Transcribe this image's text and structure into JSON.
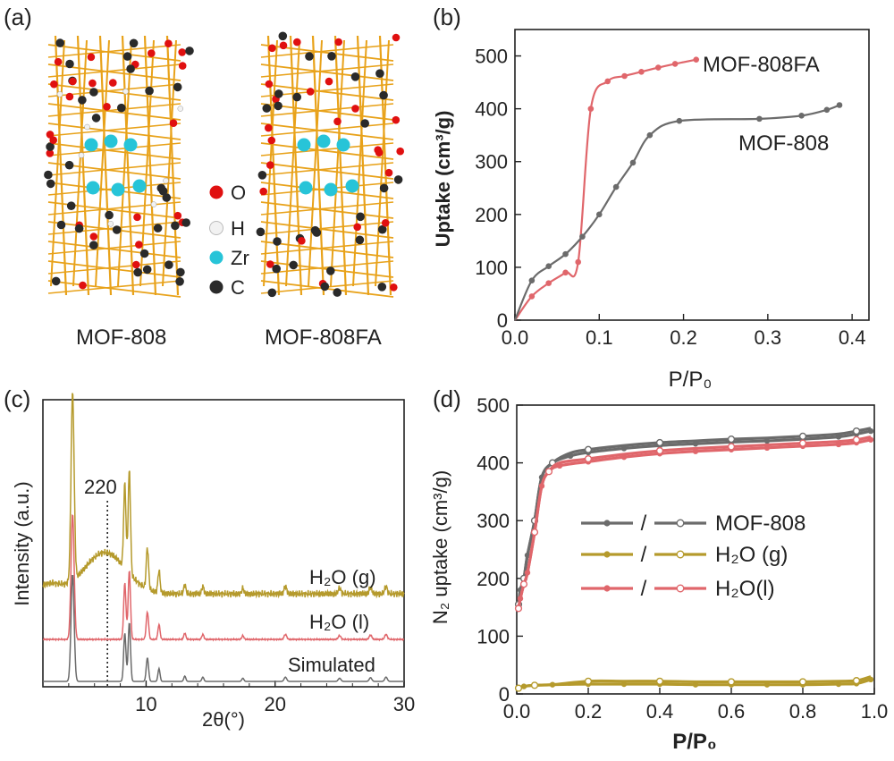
{
  "colors": {
    "gray": "#6b6b6b",
    "red": "#e0666b",
    "gold": "#b59a2c",
    "axis": "#222222",
    "zr": "#27c4d8",
    "o": "#e01010",
    "c": "#2a2a2a",
    "h": "#f2f2f2",
    "bond": "#e8a21a"
  },
  "panels": {
    "a": {
      "label": "(a)",
      "structure_left": "MOF-808",
      "structure_right": "MOF-808FA",
      "legend": [
        {
          "symbol": "O",
          "color": "#e01010"
        },
        {
          "symbol": "H",
          "color": "#f2f2f2"
        },
        {
          "symbol": "Zr",
          "color": "#27c4d8"
        },
        {
          "symbol": "C",
          "color": "#2a2a2a"
        }
      ]
    },
    "b": {
      "label": "(b)"
    },
    "c": {
      "label": "(c)",
      "peak_annotation": "220"
    },
    "d": {
      "label": "(d)",
      "legend_separator": "/"
    }
  },
  "chart_data": [
    {
      "panel": "b",
      "type": "line",
      "xlabel": "P/P₀",
      "ylabel": "Uptake (cm³/g)",
      "xlim": [
        0.0,
        0.42
      ],
      "ylim": [
        0,
        550
      ],
      "xticks": [
        "0.0",
        "0.1",
        "0.2",
        "0.3",
        "0.4"
      ],
      "yticks": [
        "0",
        "100",
        "200",
        "300",
        "400",
        "500"
      ],
      "series": [
        {
          "name": "MOF-808FA",
          "color": "#e0666b",
          "x": [
            0.0,
            0.02,
            0.04,
            0.06,
            0.075,
            0.09,
            0.11,
            0.13,
            0.15,
            0.17,
            0.19,
            0.215
          ],
          "y": [
            0,
            45,
            70,
            90,
            110,
            400,
            452,
            462,
            470,
            478,
            485,
            493
          ]
        },
        {
          "name": "MOF-808",
          "color": "#6b6b6b",
          "x": [
            0.0,
            0.02,
            0.04,
            0.06,
            0.08,
            0.1,
            0.12,
            0.14,
            0.16,
            0.195,
            0.29,
            0.34,
            0.37,
            0.385
          ],
          "y": [
            0,
            75,
            102,
            125,
            158,
            200,
            252,
            298,
            350,
            377,
            381,
            387,
            398,
            407
          ]
        }
      ]
    },
    {
      "panel": "c",
      "type": "line",
      "xlabel": "2θ(°)",
      "ylabel": "Intensity (a.u.)",
      "xlim": [
        2,
        30
      ],
      "xticks": [
        "10",
        "20",
        "30"
      ],
      "marker_line_x": 7.0,
      "series": [
        {
          "name": "H₂O (g)",
          "color": "#b59a2c"
        },
        {
          "name": "H₂O (l)",
          "color": "#e0666b"
        },
        {
          "name": "Simulated",
          "color": "#6b6b6b"
        }
      ]
    },
    {
      "panel": "d",
      "type": "line",
      "xlabel": "P/P₀",
      "ylabel": "N₂ uptake (cm³/g)",
      "xlim": [
        0.0,
        1.0
      ],
      "ylim": [
        0,
        500
      ],
      "xticks": [
        "0.0",
        "0.2",
        "0.4",
        "0.6",
        "0.8",
        "1.0"
      ],
      "yticks": [
        "0",
        "100",
        "200",
        "300",
        "400",
        "500"
      ],
      "series": [
        {
          "name": "MOF-808",
          "color": "#6b6b6b",
          "x": [
            0.005,
            0.01,
            0.02,
            0.03,
            0.05,
            0.07,
            0.1,
            0.15,
            0.2,
            0.3,
            0.4,
            0.5,
            0.6,
            0.7,
            0.8,
            0.9,
            0.95,
            0.99
          ],
          "y": [
            155,
            180,
            200,
            240,
            300,
            375,
            400,
            412,
            418,
            425,
            430,
            433,
            436,
            438,
            441,
            445,
            450,
            455
          ]
        },
        {
          "name": "H₂O (g)",
          "color": "#b59a2c",
          "x": [
            0.005,
            0.02,
            0.05,
            0.1,
            0.2,
            0.3,
            0.4,
            0.5,
            0.6,
            0.7,
            0.8,
            0.9,
            0.95,
            0.99
          ],
          "y": [
            10,
            13,
            15,
            16,
            17,
            17,
            17,
            16,
            16,
            16,
            16,
            17,
            18,
            25
          ]
        },
        {
          "name": "H₂O(l)",
          "color": "#e0666b",
          "x": [
            0.005,
            0.01,
            0.02,
            0.03,
            0.05,
            0.07,
            0.09,
            0.12,
            0.2,
            0.3,
            0.4,
            0.5,
            0.6,
            0.7,
            0.8,
            0.9,
            0.95,
            0.99
          ],
          "y": [
            148,
            165,
            190,
            210,
            280,
            360,
            385,
            395,
            402,
            410,
            416,
            420,
            423,
            426,
            429,
            432,
            435,
            440
          ]
        }
      ]
    }
  ]
}
